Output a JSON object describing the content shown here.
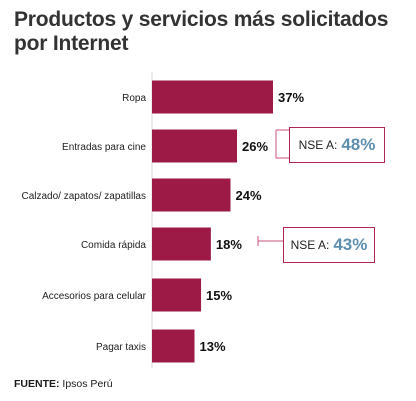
{
  "title": "Productos y servicios más solicitados por Internet",
  "source": {
    "label": "FUENTE:",
    "text": "Ipsos Perú"
  },
  "colors": {
    "bar": "#9c1a45",
    "accent": "#5e8fb0",
    "connector": "#c8557a"
  },
  "callouts": [
    {
      "category": "Entradas para cine",
      "label": "NSE A:",
      "value": "48%"
    },
    {
      "category": "Comida rápida",
      "label": "NSE A:",
      "value": "43%"
    }
  ],
  "chart_data": {
    "type": "bar",
    "orientation": "horizontal",
    "categories": [
      "Ropa",
      "Entradas para cine",
      "Calzado/ zapatos/ zapatillas",
      "Comida rápida",
      "Accesorios para celular",
      "Pagar taxis"
    ],
    "values": [
      37,
      26,
      24,
      18,
      15,
      13
    ],
    "value_labels": [
      "37%",
      "26%",
      "24%",
      "18%",
      "15%",
      "13%"
    ],
    "title": "Productos y servicios más solicitados por Internet",
    "xlabel": "",
    "ylabel": "",
    "xlim": [
      0,
      37
    ],
    "grid": false,
    "legend": "none"
  }
}
